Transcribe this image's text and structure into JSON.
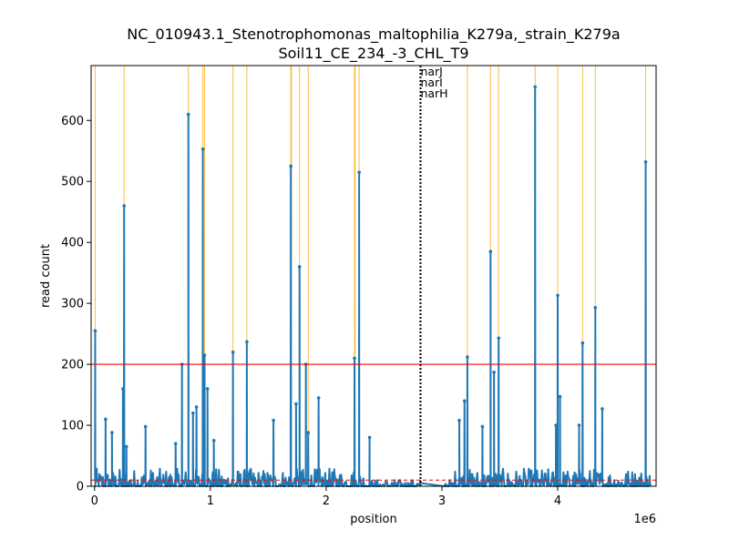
{
  "chart_data": {
    "type": "line",
    "title_line1": "NC_010943.1_Stenotrophomonas_maltophilia_K279a,_strain_K279a",
    "title_line2": "Soil11_CE_234_-3_CHL_T9",
    "xlabel": "position",
    "ylabel": "read count",
    "x_offset_label": "1e6",
    "xlim": [
      -30000,
      4850000
    ],
    "ylim": [
      0,
      690
    ],
    "x_ticks": [
      0,
      1000000,
      2000000,
      3000000,
      4000000
    ],
    "x_tick_labels": [
      "0",
      "1",
      "2",
      "3",
      "4"
    ],
    "y_ticks": [
      0,
      100,
      200,
      300,
      400,
      500,
      600
    ],
    "y_tick_labels": [
      "0",
      "100",
      "200",
      "300",
      "400",
      "500",
      "600"
    ],
    "series_color": "#1f77b4",
    "threshold_high": {
      "y": 200,
      "color": "#ff0000"
    },
    "threshold_low": {
      "y": 10,
      "color": "#ff0000",
      "style": "dashed"
    },
    "highlight_color": "#ffa500",
    "highlight_positions": [
      5000,
      255000,
      810000,
      935000,
      950000,
      1195000,
      1315000,
      1695000,
      1700000,
      1770000,
      1845000,
      2245000,
      2250000,
      2285000,
      3220000,
      3420000,
      3490000,
      3805000,
      4000000,
      4215000,
      4325000,
      4760000
    ],
    "gene_marker": {
      "x": 2815000,
      "labels": [
        "narJ",
        "narI",
        "narH"
      ]
    },
    "peaks": [
      [
        5000,
        255
      ],
      [
        95000,
        110
      ],
      [
        150000,
        88
      ],
      [
        245000,
        160
      ],
      [
        255000,
        460
      ],
      [
        275000,
        65
      ],
      [
        440000,
        98
      ],
      [
        700000,
        70
      ],
      [
        755000,
        200
      ],
      [
        810000,
        610
      ],
      [
        850000,
        120
      ],
      [
        880000,
        130
      ],
      [
        935000,
        553
      ],
      [
        950000,
        215
      ],
      [
        975000,
        160
      ],
      [
        1030000,
        75
      ],
      [
        1195000,
        220
      ],
      [
        1315000,
        237
      ],
      [
        1545000,
        108
      ],
      [
        1695000,
        525
      ],
      [
        1740000,
        135
      ],
      [
        1770000,
        360
      ],
      [
        1825000,
        200
      ],
      [
        1845000,
        88
      ],
      [
        1935000,
        145
      ],
      [
        2245000,
        210
      ],
      [
        2285000,
        515
      ],
      [
        2375000,
        80
      ],
      [
        3150000,
        108
      ],
      [
        3195000,
        140
      ],
      [
        3220000,
        212
      ],
      [
        3350000,
        98
      ],
      [
        3420000,
        385
      ],
      [
        3450000,
        187
      ],
      [
        3490000,
        243
      ],
      [
        3805000,
        655
      ],
      [
        3985000,
        100
      ],
      [
        4000000,
        313
      ],
      [
        4020000,
        147
      ],
      [
        4185000,
        100
      ],
      [
        4215000,
        235
      ],
      [
        4325000,
        293
      ],
      [
        4385000,
        127
      ],
      [
        4760000,
        532
      ]
    ]
  }
}
